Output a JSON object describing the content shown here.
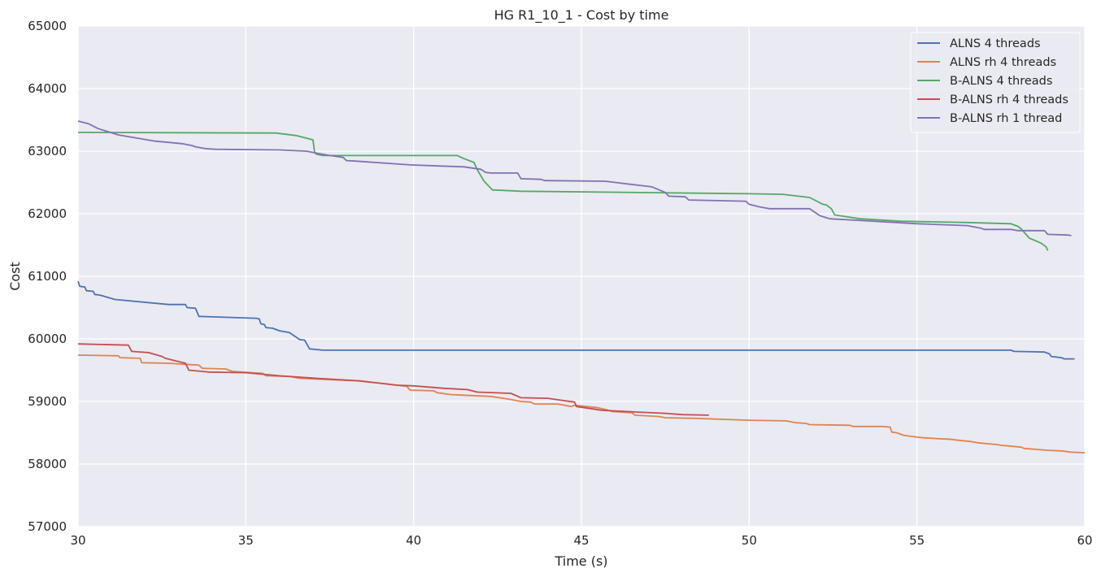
{
  "chart_data": {
    "type": "line",
    "title": "HG R1_10_1 - Cost by time",
    "xlabel": "Time (s)",
    "ylabel": "Cost",
    "xlim": [
      30,
      60
    ],
    "ylim": [
      57000,
      65000
    ],
    "xticks": [
      30,
      35,
      40,
      45,
      50,
      55,
      60
    ],
    "yticks": [
      57000,
      58000,
      59000,
      60000,
      61000,
      62000,
      63000,
      64000,
      65000
    ],
    "grid": true,
    "legend": "top-right",
    "series": [
      {
        "name": "ALNS 4 threads",
        "color": "#4c72b0",
        "x": [
          30.0,
          30.05,
          30.2,
          30.25,
          30.45,
          30.5,
          30.65,
          31.1,
          32.7,
          33.2,
          33.25,
          33.5,
          33.6,
          35.3,
          35.4,
          35.45,
          35.55,
          35.6,
          35.8,
          36.0,
          36.2,
          36.3,
          36.6,
          36.75,
          36.9,
          37.3,
          57.8,
          57.9,
          58.8,
          58.95,
          59.0,
          59.3,
          59.4,
          59.7
        ],
        "y": [
          60920,
          60840,
          60830,
          60770,
          60760,
          60710,
          60700,
          60630,
          60550,
          60550,
          60500,
          60490,
          60360,
          60330,
          60320,
          60240,
          60230,
          60180,
          60170,
          60130,
          60110,
          60100,
          59990,
          59980,
          59840,
          59820,
          59820,
          59800,
          59790,
          59760,
          59720,
          59700,
          59680,
          59680
        ]
      },
      {
        "name": "ALNS rh 4 threads",
        "color": "#dd8452",
        "x": [
          30.0,
          31.2,
          31.25,
          31.85,
          31.9,
          32.7,
          33.6,
          33.7,
          34.4,
          34.6,
          35.5,
          35.6,
          36.3,
          36.6,
          38.3,
          39.2,
          39.8,
          39.9,
          40.6,
          40.7,
          41.1,
          41.5,
          42.3,
          42.8,
          43.2,
          43.5,
          43.6,
          44.3,
          44.7,
          44.8,
          45.5,
          45.8,
          45.9,
          46.5,
          46.6,
          47.3,
          47.5,
          48.4,
          50.0,
          51.1,
          51.4,
          51.7,
          51.8,
          53.0,
          53.1,
          54.0,
          54.2,
          54.25,
          54.4,
          54.6,
          55.0,
          55.2,
          55.8,
          55.9,
          56.6,
          56.8,
          57.4,
          57.5,
          58.1,
          58.2,
          58.9,
          59.3,
          59.6,
          60.0
        ],
        "y": [
          59740,
          59730,
          59700,
          59690,
          59620,
          59610,
          59580,
          59530,
          59520,
          59480,
          59450,
          59410,
          59400,
          59370,
          59330,
          59280,
          59240,
          59180,
          59170,
          59140,
          59110,
          59100,
          59080,
          59040,
          59000,
          58990,
          58960,
          58960,
          58920,
          58940,
          58900,
          58860,
          58840,
          58820,
          58780,
          58760,
          58740,
          58730,
          58700,
          58690,
          58660,
          58650,
          58630,
          58620,
          58600,
          58600,
          58590,
          58510,
          58500,
          58460,
          58430,
          58420,
          58400,
          58400,
          58360,
          58340,
          58310,
          58300,
          58270,
          58250,
          58220,
          58210,
          58190,
          58180
        ]
      },
      {
        "name": "B-ALNS 4 threads",
        "color": "#55a868",
        "x": [
          30.0,
          35.9,
          36.5,
          37.0,
          37.05,
          37.1,
          37.3,
          41.3,
          41.5,
          41.8,
          41.9,
          42.1,
          42.35,
          43.2,
          50.0,
          51.0,
          51.8,
          52.2,
          52.3,
          52.45,
          52.55,
          53.3,
          54.5,
          56.5,
          57.8,
          58.0,
          58.1,
          58.35,
          58.7,
          58.85,
          58.9
        ],
        "y": [
          63300,
          63290,
          63250,
          63180,
          62980,
          62950,
          62930,
          62930,
          62880,
          62820,
          62700,
          62520,
          62380,
          62360,
          62320,
          62310,
          62260,
          62150,
          62140,
          62080,
          61980,
          61920,
          61880,
          61860,
          61840,
          61800,
          61760,
          61610,
          61530,
          61470,
          61410
        ]
      },
      {
        "name": "B-ALNS rh 4 threads",
        "color": "#c44e52",
        "x": [
          30.0,
          31.5,
          31.6,
          32.1,
          32.5,
          32.6,
          33.2,
          33.3,
          33.9,
          35.0,
          36.0,
          37.1,
          38.4,
          39.5,
          40.0,
          40.9,
          41.6,
          41.9,
          42.9,
          43.2,
          44.0,
          44.4,
          44.8,
          44.85,
          45.6,
          46.7,
          47.5,
          48.0,
          48.8
        ],
        "y": [
          59920,
          59900,
          59800,
          59780,
          59720,
          59690,
          59610,
          59500,
          59470,
          59460,
          59410,
          59370,
          59330,
          59260,
          59250,
          59210,
          59190,
          59150,
          59130,
          59060,
          59050,
          59020,
          58990,
          58920,
          58860,
          58830,
          58810,
          58790,
          58780
        ]
      },
      {
        "name": "B-ALNS rh 1 thread",
        "color": "#8172b2",
        "x": [
          30.0,
          30.3,
          30.6,
          30.9,
          31.2,
          32.3,
          32.7,
          33.1,
          33.4,
          33.5,
          33.8,
          34.1,
          36.0,
          36.8,
          37.2,
          37.4,
          37.9,
          38.0,
          38.3,
          39.9,
          40.4,
          41.5,
          42.0,
          42.15,
          42.3,
          43.1,
          43.2,
          43.8,
          43.9,
          45.7,
          47.1,
          47.5,
          47.6,
          48.1,
          48.2,
          49.9,
          50.0,
          50.3,
          50.6,
          51.8,
          52.1,
          52.4,
          53.4,
          55.0,
          56.5,
          56.9,
          57.0,
          57.8,
          58.0,
          58.8,
          58.9,
          59.5,
          59.6
        ],
        "y": [
          63480,
          63440,
          63360,
          63310,
          63260,
          63160,
          63140,
          63120,
          63090,
          63070,
          63040,
          63030,
          63020,
          63000,
          62960,
          62940,
          62900,
          62850,
          62840,
          62780,
          62770,
          62750,
          62710,
          62660,
          62650,
          62650,
          62560,
          62550,
          62530,
          62520,
          62430,
          62340,
          62280,
          62270,
          62220,
          62200,
          62150,
          62110,
          62080,
          62080,
          61970,
          61920,
          61890,
          61840,
          61810,
          61770,
          61750,
          61750,
          61730,
          61730,
          61670,
          61660,
          61650
        ]
      }
    ]
  }
}
